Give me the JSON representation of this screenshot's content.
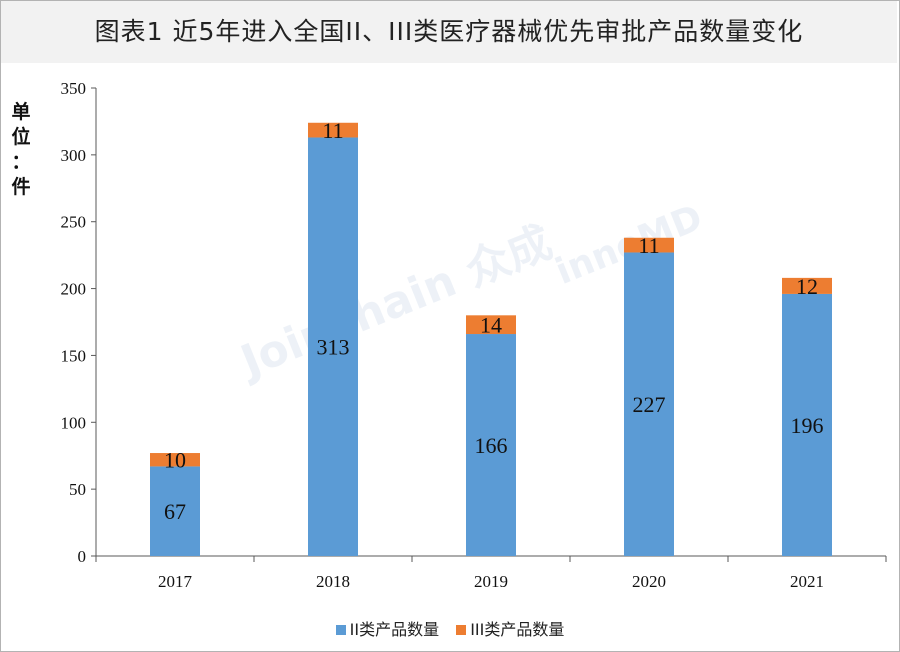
{
  "title": "图表1  近5年进入全国II、III类医疗器械优先审批产品数量变化",
  "unit_label": [
    "单",
    "位",
    "：",
    "件"
  ],
  "watermarks": {
    "left": "Joinchain 众成",
    "right": "innoMD"
  },
  "colors": {
    "series_ii": "#5b9bd5",
    "series_iii": "#ed7d31",
    "axis": "#595959",
    "title_bg": "#f2f2f2"
  },
  "chart_data": {
    "type": "bar",
    "stacked": true,
    "categories": [
      "2017",
      "2018",
      "2019",
      "2020",
      "2021"
    ],
    "series": [
      {
        "name": "II类产品数量",
        "values": [
          67,
          313,
          166,
          227,
          196
        ]
      },
      {
        "name": "III类产品数量",
        "values": [
          10,
          11,
          14,
          11,
          12
        ]
      }
    ],
    "ylim": [
      0,
      350
    ],
    "yticks": [
      0,
      50,
      100,
      150,
      200,
      250,
      300,
      350
    ],
    "grid": false,
    "legend_position": "bottom"
  }
}
